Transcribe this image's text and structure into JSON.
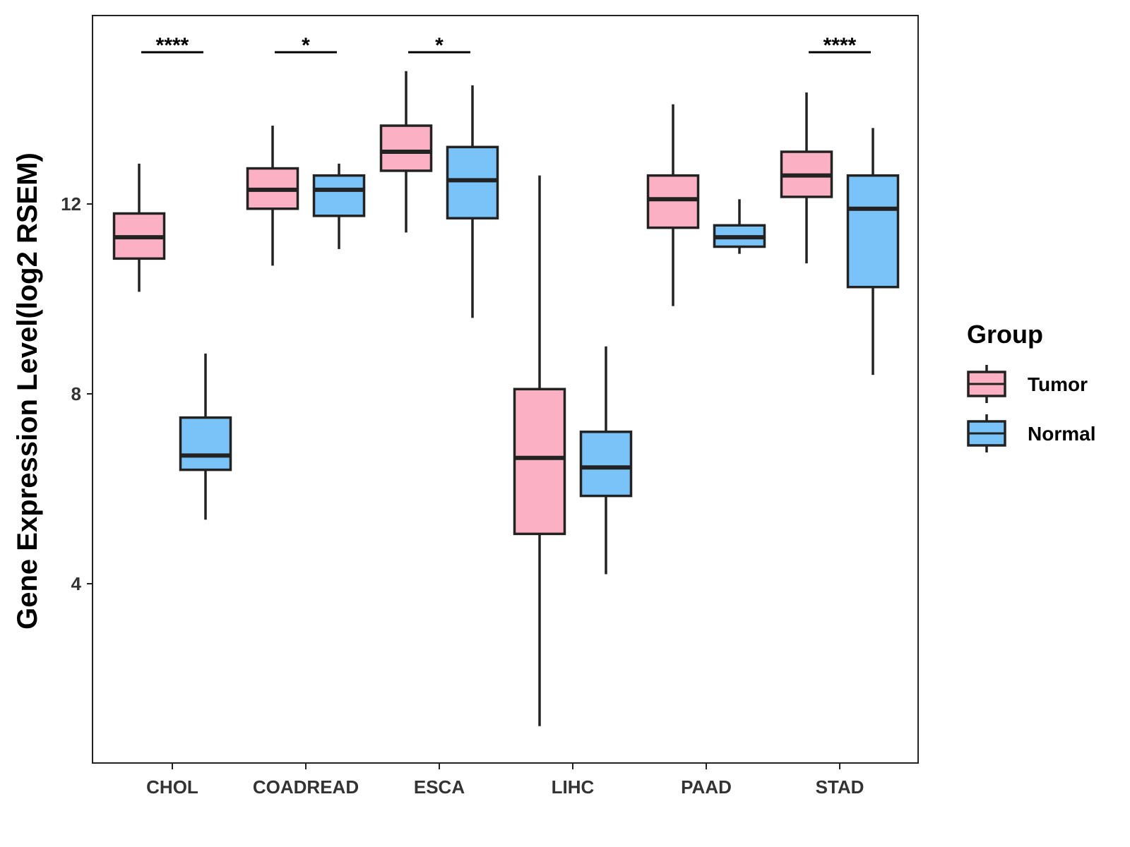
{
  "chart_data": {
    "type": "boxplot",
    "title": "",
    "xlabel": "",
    "ylabel": "Gene Expression Level(log2 RSEM)",
    "ylim": [
      0.4,
      16.2
    ],
    "yticks": [
      4,
      8,
      12
    ],
    "categories": [
      "CHOL",
      "COADREAD",
      "ESCA",
      "LIHC",
      "PAAD",
      "STAD"
    ],
    "series": [
      {
        "name": "Tumor",
        "color": "#FBB1C3",
        "boxes": [
          {
            "min": 10.15,
            "q1": 10.85,
            "median": 11.3,
            "q3": 11.8,
            "max": 12.85
          },
          {
            "min": 10.7,
            "q1": 11.9,
            "median": 12.3,
            "q3": 12.75,
            "max": 13.65
          },
          {
            "min": 11.4,
            "q1": 12.7,
            "median": 13.1,
            "q3": 13.65,
            "max": 14.8
          },
          {
            "min": 1.0,
            "q1": 5.05,
            "median": 6.65,
            "q3": 8.1,
            "max": 12.6
          },
          {
            "min": 9.85,
            "q1": 11.5,
            "median": 12.1,
            "q3": 12.6,
            "max": 14.1
          },
          {
            "min": 10.75,
            "q1": 12.15,
            "median": 12.6,
            "q3": 13.1,
            "max": 14.35
          }
        ]
      },
      {
        "name": "Normal",
        "color": "#7AC3F8",
        "boxes": [
          {
            "min": 5.35,
            "q1": 6.4,
            "median": 6.7,
            "q3": 7.5,
            "max": 8.85
          },
          {
            "min": 11.05,
            "q1": 11.75,
            "median": 12.3,
            "q3": 12.6,
            "max": 12.85
          },
          {
            "min": 9.6,
            "q1": 11.7,
            "median": 12.5,
            "q3": 13.2,
            "max": 14.5
          },
          {
            "min": 4.2,
            "q1": 5.85,
            "median": 6.45,
            "q3": 7.2,
            "max": 9.0
          },
          {
            "min": 10.95,
            "q1": 11.1,
            "median": 11.3,
            "q3": 11.55,
            "max": 12.1
          },
          {
            "min": 8.4,
            "q1": 10.25,
            "median": 11.9,
            "q3": 12.6,
            "max": 13.6
          }
        ]
      }
    ],
    "significance": [
      {
        "category": "CHOL",
        "label": "****"
      },
      {
        "category": "COADREAD",
        "label": "*"
      },
      {
        "category": "ESCA",
        "label": "*"
      },
      {
        "category": "STAD",
        "label": "****"
      }
    ],
    "legend": {
      "title": "Group",
      "position": "right",
      "items": [
        "Tumor",
        "Normal"
      ]
    }
  }
}
